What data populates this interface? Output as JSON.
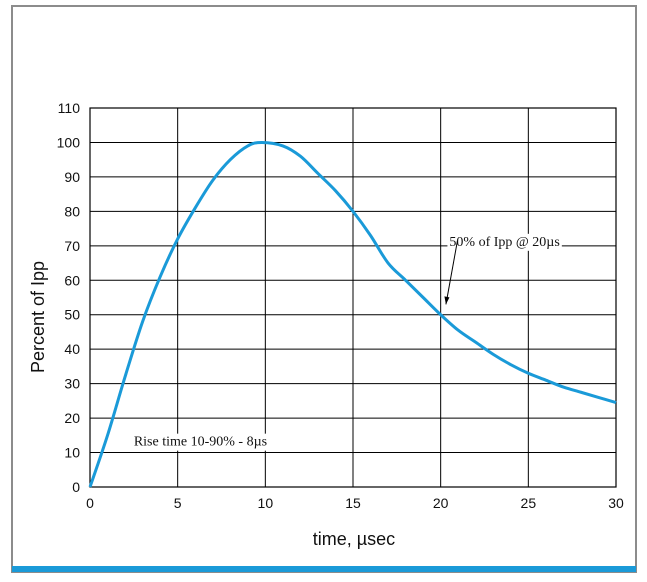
{
  "chart_data": {
    "type": "line",
    "xlabel": "time, µsec",
    "ylabel": "Percent of Ipp",
    "xlim": [
      0,
      30
    ],
    "ylim": [
      0,
      110
    ],
    "xticks": [
      0,
      5,
      10,
      15,
      20,
      25,
      30
    ],
    "yticks": [
      0,
      10,
      20,
      30,
      40,
      50,
      60,
      70,
      80,
      90,
      100,
      110
    ],
    "grid": true,
    "series": [
      {
        "color": "#1a9ad8",
        "x": [
          0,
          1,
          2,
          3,
          4,
          5,
          6,
          7,
          8,
          9,
          9.8,
          11,
          12,
          13,
          14,
          15,
          16,
          17,
          18,
          19,
          20,
          21,
          22,
          23,
          24,
          25,
          26,
          27,
          28,
          29,
          30
        ],
        "y": [
          0,
          15,
          32,
          48,
          61,
          72,
          81,
          89,
          95,
          99,
          100,
          99,
          96,
          91,
          86,
          80,
          73,
          65,
          60,
          55,
          50,
          45.5,
          42,
          38.5,
          35.5,
          33,
          31,
          29,
          27.5,
          26,
          24.5
        ]
      }
    ],
    "annotations": [
      {
        "text": "Rise time 10-90% - 8µs",
        "x": 2.5,
        "y": 12
      },
      {
        "text": "50% of Ipp @ 20µs",
        "x": 20.5,
        "y": 70,
        "arrow_to": [
          20.3,
          53
        ]
      }
    ]
  },
  "colors": {
    "frame": "#8c8c8c",
    "accent_bar": "#1a9ad8",
    "grid": "#000000",
    "curve": "#1a9ad8"
  }
}
